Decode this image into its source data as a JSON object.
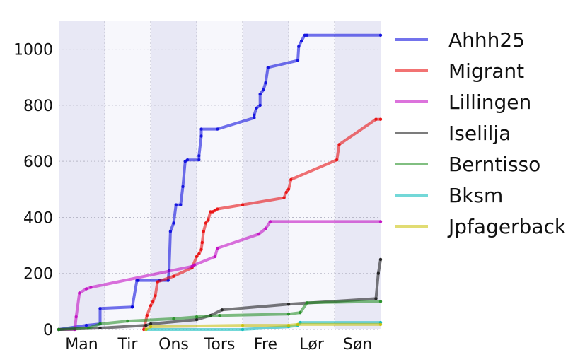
{
  "chart_data": {
    "type": "line",
    "title": "",
    "xlabel": "",
    "ylabel": "",
    "x_categories": [
      "Man",
      "Tir",
      "Ons",
      "Tors",
      "Fre",
      "Lør",
      "Søn"
    ],
    "xlim": [
      0,
      7
    ],
    "ylim": [
      0,
      1100
    ],
    "yticks": [
      0,
      200,
      400,
      600,
      800,
      1000
    ],
    "grid": true,
    "legend_position": "right",
    "shaded_days": [
      0,
      2,
      4,
      6
    ],
    "series": [
      {
        "name": "Ahhh25",
        "color": "#0000dd",
        "x": [
          0.0,
          0.6,
          0.9,
          0.9,
          1.6,
          1.6,
          1.7,
          1.73,
          2.2,
          2.38,
          2.4,
          2.43,
          2.5,
          2.55,
          2.65,
          2.7,
          2.75,
          2.8,
          3.05,
          3.05,
          3.1,
          3.1,
          3.45,
          4.25,
          4.25,
          4.3,
          4.38,
          4.38,
          4.45,
          4.5,
          4.55,
          5.2,
          5.22,
          5.28,
          5.35,
          5.4,
          7.0
        ],
        "y": [
          0,
          15,
          20,
          75,
          80,
          80,
          175,
          175,
          175,
          175,
          210,
          350,
          380,
          445,
          445,
          510,
          600,
          605,
          605,
          620,
          690,
          715,
          715,
          755,
          765,
          790,
          800,
          840,
          855,
          880,
          935,
          960,
          1010,
          1030,
          1050,
          1050,
          1050
        ]
      },
      {
        "name": "Migrant",
        "color": "#e80000",
        "x": [
          1.85,
          1.92,
          2.0,
          2.05,
          2.1,
          2.15,
          2.5,
          2.9,
          3.0,
          3.05,
          3.1,
          3.12,
          3.15,
          3.2,
          3.25,
          3.3,
          3.35,
          3.4,
          3.45,
          4.0,
          4.9,
          4.95,
          5.0,
          5.05,
          6.05,
          6.1,
          6.9,
          7.0
        ],
        "y": [
          0,
          50,
          85,
          100,
          120,
          170,
          190,
          220,
          260,
          270,
          285,
          310,
          350,
          380,
          390,
          420,
          420,
          425,
          430,
          445,
          470,
          490,
          500,
          535,
          605,
          660,
          750,
          750
        ]
      },
      {
        "name": "Lillingen",
        "color": "#c000c0",
        "x": [
          0.0,
          0.35,
          0.38,
          0.45,
          0.6,
          0.7,
          2.9,
          2.95,
          3.4,
          3.45,
          4.35,
          4.5,
          4.6,
          7.0
        ],
        "y": [
          0,
          0,
          45,
          130,
          145,
          150,
          225,
          230,
          260,
          290,
          340,
          360,
          385,
          385
        ]
      },
      {
        "name": "Iselilja",
        "color": "#111111",
        "x": [
          0.0,
          0.9,
          1.9,
          2.0,
          3.0,
          3.3,
          3.55,
          5.0,
          6.9,
          6.95,
          7.0
        ],
        "y": [
          0,
          5,
          15,
          20,
          35,
          50,
          70,
          90,
          110,
          200,
          250
        ]
      },
      {
        "name": "Berntisso",
        "color": "#1a8a1a",
        "x": [
          0.0,
          0.65,
          0.9,
          1.5,
          2.5,
          3.0,
          3.5,
          5.0,
          5.25,
          5.4,
          7.0
        ],
        "y": [
          0,
          5,
          20,
          30,
          38,
          45,
          50,
          55,
          60,
          95,
          100
        ]
      },
      {
        "name": "Bksm",
        "color": "#00b8b8",
        "x": [
          1.9,
          4.0,
          5.0,
          5.2,
          5.25,
          7.0
        ],
        "y": [
          0,
          0,
          10,
          15,
          25,
          25
        ]
      },
      {
        "name": "Jpfagerback",
        "color": "#c8c000",
        "x": [
          1.9,
          2.0,
          4.0,
          5.0,
          5.2,
          7.0
        ],
        "y": [
          0,
          10,
          15,
          15,
          18,
          18
        ]
      }
    ]
  }
}
